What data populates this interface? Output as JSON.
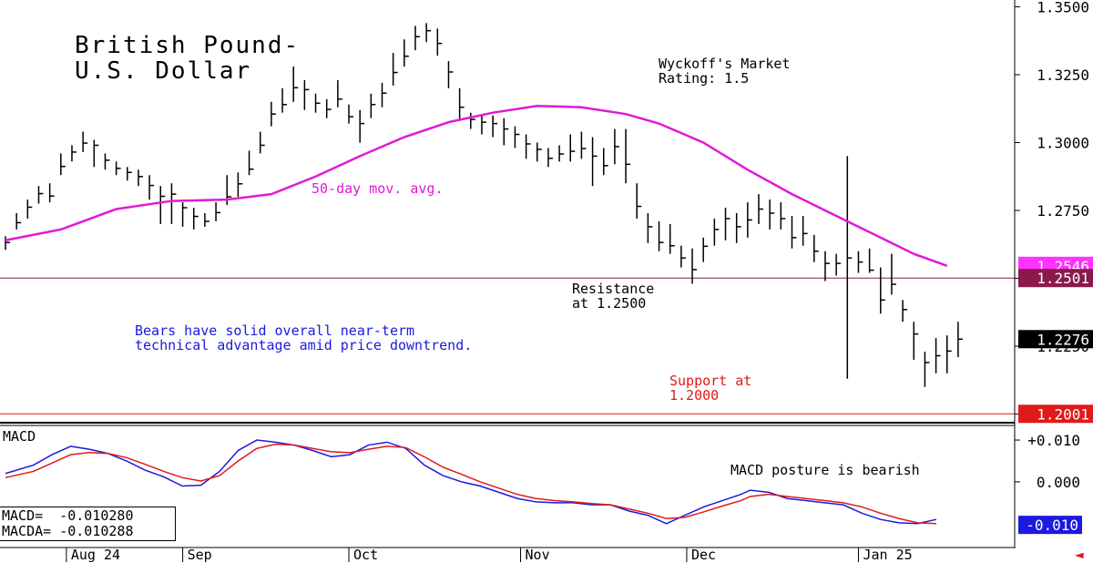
{
  "chart_data": {
    "type": "ohlc",
    "title": "British Pound-\nU.S. Dollar",
    "price_axis": {
      "range": [
        1.1975,
        1.3525
      ],
      "ticks": [
        1.35,
        1.325,
        1.3,
        1.275,
        1.25,
        1.225,
        1.2
      ],
      "tick_labels": [
        "1.3500",
        "1.3250",
        "1.3000",
        "1.2750",
        "1.2500",
        "1.2250",
        "1.2000"
      ]
    },
    "macd_axis": {
      "range": [
        -0.0155,
        0.0135
      ],
      "ticks": [
        0.01,
        0.0
      ],
      "tick_labels": [
        "+0.010",
        "0.000"
      ]
    },
    "x_axis": {
      "months": [
        {
          "label": "Aug 24",
          "day": 11
        },
        {
          "label": "Sep",
          "day": 32
        },
        {
          "label": "Oct",
          "day": 62
        },
        {
          "label": "Nov",
          "day": 93
        },
        {
          "label": "Dec",
          "day": 123
        },
        {
          "label": "Jan 25",
          "day": 154
        }
      ],
      "first_day": 0,
      "last_day": 173
    },
    "closes": [
      [
        0,
        1.2632
      ],
      [
        2,
        1.2705
      ],
      [
        4,
        1.2762
      ],
      [
        6,
        1.2812
      ],
      [
        8,
        1.2803
      ],
      [
        10,
        1.2912
      ],
      [
        12,
        1.2965
      ],
      [
        14,
        1.2998
      ],
      [
        16,
        1.299
      ],
      [
        18,
        1.2935
      ],
      [
        20,
        1.2905
      ],
      [
        22,
        1.289
      ],
      [
        24,
        1.2875
      ],
      [
        26,
        1.2842
      ],
      [
        28,
        1.2802
      ],
      [
        30,
        1.281
      ],
      [
        32,
        1.276
      ],
      [
        34,
        1.2728
      ],
      [
        36,
        1.271
      ],
      [
        38,
        1.2742
      ],
      [
        40,
        1.28
      ],
      [
        42,
        1.2848
      ],
      [
        44,
        1.2902
      ],
      [
        46,
        1.299
      ],
      [
        48,
        1.3105
      ],
      [
        50,
        1.314
      ],
      [
        52,
        1.3202
      ],
      [
        54,
        1.3195
      ],
      [
        56,
        1.3145
      ],
      [
        58,
        1.3122
      ],
      [
        60,
        1.316
      ],
      [
        62,
        1.3095
      ],
      [
        64,
        1.307
      ],
      [
        66,
        1.314
      ],
      [
        68,
        1.3182
      ],
      [
        70,
        1.3258
      ],
      [
        72,
        1.3318
      ],
      [
        74,
        1.339
      ],
      [
        76,
        1.3412
      ],
      [
        78,
        1.3365
      ],
      [
        80,
        1.326
      ],
      [
        82,
        1.313
      ],
      [
        84,
        1.3085
      ],
      [
        86,
        1.3075
      ],
      [
        88,
        1.307
      ],
      [
        90,
        1.305
      ],
      [
        92,
        1.303
      ],
      [
        94,
        1.2995
      ],
      [
        96,
        1.2975
      ],
      [
        98,
        1.2942
      ],
      [
        100,
        1.2958
      ],
      [
        102,
        1.2968
      ],
      [
        104,
        1.2978
      ],
      [
        106,
        1.295
      ],
      [
        108,
        1.2915
      ],
      [
        110,
        1.2985
      ],
      [
        112,
        1.292
      ],
      [
        114,
        1.2765
      ],
      [
        116,
        1.269
      ],
      [
        118,
        1.2632
      ],
      [
        120,
        1.262
      ],
      [
        122,
        1.2575
      ],
      [
        124,
        1.2532
      ],
      [
        126,
        1.2618
      ],
      [
        128,
        1.268
      ],
      [
        130,
        1.272
      ],
      [
        132,
        1.269
      ],
      [
        134,
        1.2715
      ],
      [
        136,
        1.2755
      ],
      [
        138,
        1.274
      ],
      [
        140,
        1.272
      ],
      [
        142,
        1.265
      ],
      [
        144,
        1.2665
      ],
      [
        146,
        1.26
      ],
      [
        148,
        1.2555
      ],
      [
        150,
        1.2555
      ],
      [
        152,
        1.2575
      ],
      [
        154,
        1.256
      ],
      [
        156,
        1.253
      ],
      [
        158,
        1.242
      ],
      [
        160,
        1.2478
      ],
      [
        162,
        1.2385
      ],
      [
        164,
        1.2295
      ],
      [
        166,
        1.219
      ],
      [
        168,
        1.2215
      ],
      [
        170,
        1.2232
      ],
      [
        172,
        1.2276
      ]
    ],
    "bars": [
      [
        0,
        1.2655,
        1.2605
      ],
      [
        2,
        1.274,
        1.268
      ],
      [
        4,
        1.279,
        1.272
      ],
      [
        6,
        1.284,
        1.2775
      ],
      [
        8,
        1.285,
        1.278
      ],
      [
        10,
        1.296,
        1.288
      ],
      [
        12,
        1.299,
        1.293
      ],
      [
        14,
        1.304,
        1.2965
      ],
      [
        16,
        1.301,
        1.291
      ],
      [
        18,
        1.296,
        1.29
      ],
      [
        20,
        1.293,
        1.288
      ],
      [
        22,
        1.291,
        1.286
      ],
      [
        24,
        1.29,
        1.284
      ],
      [
        26,
        1.288,
        1.279
      ],
      [
        28,
        1.284,
        1.27
      ],
      [
        30,
        1.285,
        1.27
      ],
      [
        32,
        1.278,
        1.269
      ],
      [
        34,
        1.276,
        1.268
      ],
      [
        36,
        1.274,
        1.269
      ],
      [
        38,
        1.278,
        1.271
      ],
      [
        40,
        1.288,
        1.277
      ],
      [
        42,
        1.289,
        1.28
      ],
      [
        44,
        1.297,
        1.288
      ],
      [
        46,
        1.304,
        1.296
      ],
      [
        48,
        1.315,
        1.306
      ],
      [
        50,
        1.32,
        1.311
      ],
      [
        52,
        1.328,
        1.315
      ],
      [
        54,
        1.323,
        1.312
      ],
      [
        56,
        1.318,
        1.311
      ],
      [
        58,
        1.316,
        1.309
      ],
      [
        60,
        1.323,
        1.313
      ],
      [
        62,
        1.314,
        1.307
      ],
      [
        64,
        1.312,
        1.3
      ],
      [
        66,
        1.318,
        1.309
      ],
      [
        68,
        1.322,
        1.313
      ],
      [
        70,
        1.333,
        1.321
      ],
      [
        72,
        1.338,
        1.328
      ],
      [
        74,
        1.343,
        1.334
      ],
      [
        76,
        1.344,
        1.337
      ],
      [
        78,
        1.342,
        1.332
      ],
      [
        80,
        1.33,
        1.32
      ],
      [
        82,
        1.32,
        1.308
      ],
      [
        84,
        1.311,
        1.305
      ],
      [
        86,
        1.31,
        1.303
      ],
      [
        88,
        1.31,
        1.302
      ],
      [
        90,
        1.309,
        1.299
      ],
      [
        92,
        1.306,
        1.298
      ],
      [
        94,
        1.303,
        1.294
      ],
      [
        96,
        1.3,
        1.293
      ],
      [
        98,
        1.298,
        1.291
      ],
      [
        100,
        1.299,
        1.293
      ],
      [
        102,
        1.303,
        1.293
      ],
      [
        104,
        1.304,
        1.294
      ],
      [
        106,
        1.302,
        1.284
      ],
      [
        108,
        1.298,
        1.288
      ],
      [
        110,
        1.305,
        1.292
      ],
      [
        112,
        1.305,
        1.285
      ],
      [
        114,
        1.285,
        1.272
      ],
      [
        116,
        1.274,
        1.263
      ],
      [
        118,
        1.271,
        1.26
      ],
      [
        120,
        1.27,
        1.259
      ],
      [
        122,
        1.262,
        1.254
      ],
      [
        124,
        1.261,
        1.248
      ],
      [
        126,
        1.265,
        1.256
      ],
      [
        128,
        1.272,
        1.262
      ],
      [
        130,
        1.276,
        1.264
      ],
      [
        132,
        1.274,
        1.263
      ],
      [
        134,
        1.278,
        1.265
      ],
      [
        136,
        1.281,
        1.27
      ],
      [
        138,
        1.279,
        1.268
      ],
      [
        140,
        1.278,
        1.268
      ],
      [
        142,
        1.273,
        1.261
      ],
      [
        144,
        1.273,
        1.262
      ],
      [
        146,
        1.266,
        1.256
      ],
      [
        148,
        1.26,
        1.249
      ],
      [
        150,
        1.259,
        1.251
      ],
      [
        152,
        1.295,
        1.213
      ],
      [
        154,
        1.26,
        1.252
      ],
      [
        156,
        1.261,
        1.252
      ],
      [
        158,
        1.254,
        1.237
      ],
      [
        160,
        1.259,
        1.244
      ],
      [
        162,
        1.242,
        1.234
      ],
      [
        164,
        1.234,
        1.22
      ],
      [
        166,
        1.223,
        1.21
      ],
      [
        168,
        1.228,
        1.215
      ],
      [
        170,
        1.229,
        1.215
      ],
      [
        172,
        1.234,
        1.221
      ]
    ],
    "moving_average": {
      "name": "50-day mov. avg.",
      "color": "#e01ad6",
      "points": [
        [
          0,
          1.264
        ],
        [
          10,
          1.268
        ],
        [
          20,
          1.2755
        ],
        [
          30,
          1.2785
        ],
        [
          40,
          1.279
        ],
        [
          48,
          1.281
        ],
        [
          56,
          1.2875
        ],
        [
          64,
          1.295
        ],
        [
          72,
          1.302
        ],
        [
          80,
          1.3075
        ],
        [
          88,
          1.311
        ],
        [
          96,
          1.3135
        ],
        [
          104,
          1.313
        ],
        [
          112,
          1.3105
        ],
        [
          118,
          1.307
        ],
        [
          126,
          1.3
        ],
        [
          134,
          1.29
        ],
        [
          142,
          1.281
        ],
        [
          150,
          1.273
        ],
        [
          158,
          1.265
        ],
        [
          164,
          1.259
        ],
        [
          170,
          1.2546
        ]
      ]
    },
    "horizontal_lines": [
      {
        "name": "Resistance",
        "value": 1.2501,
        "color": "#8b1a4a"
      },
      {
        "name": "Support",
        "value": 1.2001,
        "color": "#e01a1a"
      }
    ],
    "annotations": {
      "rating": "Wyckoff's Market\nRating: 1.5",
      "ma_label": "50-day mov. avg.",
      "resistance": "Resistance\nat 1.2500",
      "commentary": "Bears have solid overall near-term\ntechnical advantage amid price downtrend.",
      "support": "Support at\n1.2000"
    },
    "price_tags": [
      {
        "label": "1.2546",
        "value": 1.2546,
        "color": "#ff33ff"
      },
      {
        "label": "1.2501",
        "value": 1.2501,
        "color": "#8b1a4a"
      },
      {
        "label": "1.2276",
        "value": 1.2276,
        "color": "#000000"
      },
      {
        "label": "1.2001",
        "value": 1.2001,
        "color": "#e01a1a"
      }
    ],
    "macd": {
      "title": "MACD",
      "posture": "MACD posture is bearish",
      "macd_label": "MACD=",
      "macd_value": "-0.010280",
      "macda_label": "MACDA=",
      "macda_value": "-0.010288",
      "tag": "-0.010",
      "tag_value": -0.0103,
      "series": [
        {
          "name": "MACD",
          "color": "#1a1ae0",
          "points": [
            [
              0,
              0.002
            ],
            [
              6,
              0.004
            ],
            [
              10,
              0.0065
            ],
            [
              14,
              0.0085
            ],
            [
              18,
              0.0078
            ],
            [
              22,
              0.0068
            ],
            [
              26,
              0.005
            ],
            [
              30,
              0.0028
            ],
            [
              34,
              0.0012
            ],
            [
              38,
              -0.001
            ],
            [
              42,
              -0.0008
            ],
            [
              46,
              0.0025
            ],
            [
              50,
              0.0075
            ],
            [
              54,
              0.01
            ],
            [
              58,
              0.0095
            ],
            [
              62,
              0.0088
            ],
            [
              66,
              0.0075
            ],
            [
              70,
              0.006
            ],
            [
              74,
              0.0065
            ],
            [
              78,
              0.0088
            ],
            [
              82,
              0.0095
            ],
            [
              86,
              0.008
            ],
            [
              90,
              0.004
            ],
            [
              94,
              0.0015
            ],
            [
              98,
              0.0
            ],
            [
              102,
              -0.001
            ],
            [
              106,
              -0.0025
            ],
            [
              110,
              -0.004
            ],
            [
              114,
              -0.0048
            ],
            [
              118,
              -0.005
            ],
            [
              122,
              -0.005
            ],
            [
              126,
              -0.0055
            ],
            [
              130,
              -0.0055
            ],
            [
              134,
              -0.007
            ],
            [
              138,
              -0.008
            ],
            [
              142,
              -0.01
            ],
            [
              146,
              -0.008
            ],
            [
              150,
              -0.006
            ],
            [
              154,
              -0.0045
            ],
            [
              158,
              -0.003
            ],
            [
              160,
              -0.002
            ],
            [
              164,
              -0.0025
            ],
            [
              168,
              -0.004
            ],
            [
              172,
              -0.0045
            ],
            [
              176,
              -0.005
            ],
            [
              180,
              -0.0055
            ],
            [
              184,
              -0.0075
            ],
            [
              188,
              -0.009
            ],
            [
              192,
              -0.0098
            ],
            [
              196,
              -0.01
            ],
            [
              200,
              -0.009
            ]
          ]
        },
        {
          "name": "MACDA",
          "color": "#e01a1a",
          "points": [
            [
              0,
              0.001
            ],
            [
              6,
              0.0025
            ],
            [
              10,
              0.0045
            ],
            [
              14,
              0.0065
            ],
            [
              18,
              0.007
            ],
            [
              22,
              0.0068
            ],
            [
              26,
              0.0058
            ],
            [
              30,
              0.0042
            ],
            [
              34,
              0.0025
            ],
            [
              38,
              0.001
            ],
            [
              42,
              0.0002
            ],
            [
              46,
              0.0015
            ],
            [
              50,
              0.005
            ],
            [
              54,
              0.008
            ],
            [
              58,
              0.009
            ],
            [
              62,
              0.0088
            ],
            [
              66,
              0.008
            ],
            [
              70,
              0.0072
            ],
            [
              74,
              0.007
            ],
            [
              78,
              0.0078
            ],
            [
              82,
              0.0085
            ],
            [
              86,
              0.0082
            ],
            [
              90,
              0.006
            ],
            [
              94,
              0.0035
            ],
            [
              98,
              0.0018
            ],
            [
              102,
              0.0
            ],
            [
              106,
              -0.0015
            ],
            [
              110,
              -0.003
            ],
            [
              114,
              -0.004
            ],
            [
              118,
              -0.0045
            ],
            [
              122,
              -0.0048
            ],
            [
              126,
              -0.0052
            ],
            [
              130,
              -0.0055
            ],
            [
              134,
              -0.0065
            ],
            [
              138,
              -0.0075
            ],
            [
              142,
              -0.0088
            ],
            [
              146,
              -0.0085
            ],
            [
              150,
              -0.0072
            ],
            [
              154,
              -0.0058
            ],
            [
              158,
              -0.0045
            ],
            [
              160,
              -0.0035
            ],
            [
              164,
              -0.003
            ],
            [
              168,
              -0.0035
            ],
            [
              172,
              -0.004
            ],
            [
              176,
              -0.0045
            ],
            [
              180,
              -0.005
            ],
            [
              184,
              -0.006
            ],
            [
              188,
              -0.0075
            ],
            [
              192,
              -0.0088
            ],
            [
              196,
              -0.0098
            ],
            [
              200,
              -0.01
            ]
          ]
        }
      ]
    }
  },
  "nav": {
    "arrow": "◄"
  }
}
